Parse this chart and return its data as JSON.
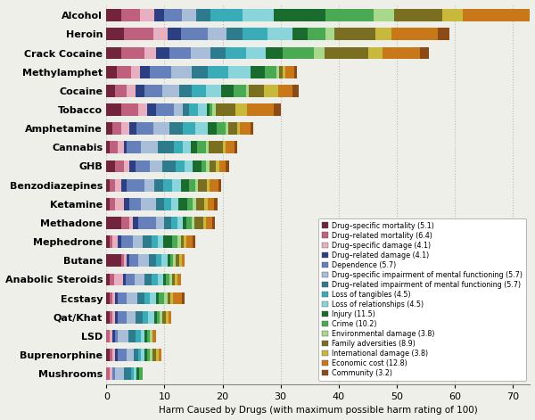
{
  "drugs": [
    "Alcohol",
    "Heroin",
    "Crack Cocaine",
    "Methylamphet",
    "Cocaine",
    "Tobacco",
    "Amphetamine",
    "Cannabis",
    "GHB",
    "Benzodiazepines",
    "Ketamine",
    "Methadone",
    "Mephedrone",
    "Butane",
    "Anabolic Steroids",
    "Ecstasy",
    "Qat/Khat",
    "LSD",
    "Buprenorphine",
    "Mushrooms"
  ],
  "categories": [
    "Drug–specific mortality (5.1)",
    "Drug–related mortality (6.4)",
    "Drug–specific damage (4.1)",
    "Drug–related damage (4.1)",
    "Dependence (5.7)",
    "Drug–specific impairment of mental functioning (5.7)",
    "Drug–related impairment of mental functioning (5.7)",
    "Loss of tangibles (4.5)",
    "Loss of relationships (4.5)",
    "Injury (11.5)",
    "Crime (10.2)",
    "Environmental damage (3.8)",
    "Family adversities (8.9)",
    "International damage (3.8)",
    "Economic cost (12.8)",
    "Community (3.2)"
  ],
  "colors": [
    "#72243d",
    "#c0607f",
    "#e8afc0",
    "#2b3f82",
    "#6680bb",
    "#a8bdd8",
    "#2d7b8c",
    "#3aacb8",
    "#8ad4dc",
    "#1a6b2e",
    "#4aaa54",
    "#a8d88a",
    "#7a6e20",
    "#c8b83c",
    "#c87818",
    "#8c4a14"
  ],
  "bar_data": {
    "Alcohol": [
      2.5,
      3.3,
      2.5,
      1.6,
      3.1,
      2.5,
      2.5,
      5.4,
      5.4,
      9.0,
      8.2,
      3.5,
      8.4,
      3.5,
      11.5,
      3.2
    ],
    "Heroin": [
      3.0,
      5.1,
      2.5,
      2.3,
      4.6,
      3.2,
      2.8,
      4.3,
      4.3,
      2.5,
      3.2,
      1.5,
      7.0,
      2.8,
      8.0,
      2.0
    ],
    "Crack Cocaine": [
      2.5,
      4.0,
      2.0,
      2.3,
      3.7,
      3.5,
      2.5,
      3.5,
      3.5,
      2.8,
      5.5,
      1.8,
      7.5,
      2.5,
      6.5,
      1.5
    ],
    "Methylamphet": [
      1.8,
      2.5,
      1.5,
      1.7,
      3.7,
      3.5,
      2.8,
      3.5,
      3.8,
      2.5,
      2.0,
      0.5,
      0.5,
      0.5,
      1.5,
      0.5
    ],
    "Cocaine": [
      1.5,
      2.0,
      1.5,
      1.5,
      3.2,
      2.8,
      2.2,
      2.5,
      2.5,
      2.2,
      2.2,
      0.5,
      2.5,
      2.5,
      2.5,
      1.0
    ],
    "Tobacco": [
      2.5,
      3.0,
      1.5,
      1.5,
      3.1,
      1.5,
      1.2,
      1.5,
      1.5,
      0.5,
      0.5,
      0.5,
      3.5,
      2.0,
      4.5,
      1.2
    ],
    "Amphetamine": [
      1.0,
      1.5,
      1.5,
      1.2,
      2.9,
      2.8,
      2.2,
      2.2,
      2.2,
      1.5,
      1.5,
      0.5,
      1.5,
      0.5,
      1.8,
      0.5
    ],
    "Cannabis": [
      0.5,
      1.5,
      1.0,
      0.5,
      2.5,
      2.8,
      2.8,
      1.5,
      1.5,
      1.0,
      1.5,
      0.5,
      2.5,
      0.5,
      1.5,
      0.5
    ],
    "GHB": [
      1.5,
      1.5,
      1.0,
      1.0,
      2.5,
      2.2,
      2.2,
      1.5,
      1.5,
      1.5,
      0.8,
      0.5,
      1.2,
      0.5,
      1.2,
      0.5
    ],
    "Benzodiazepines": [
      0.5,
      1.0,
      1.0,
      1.0,
      3.0,
      1.8,
      1.5,
      1.5,
      1.5,
      1.5,
      1.0,
      0.5,
      1.5,
      0.5,
      1.5,
      0.5
    ],
    "Ketamine": [
      0.5,
      1.0,
      1.5,
      1.0,
      2.0,
      2.5,
      1.5,
      1.2,
      1.2,
      1.5,
      1.0,
      0.5,
      1.5,
      0.5,
      1.2,
      0.5
    ],
    "Methadone": [
      2.5,
      1.5,
      0.5,
      1.0,
      3.0,
      1.5,
      1.2,
      1.0,
      1.0,
      0.5,
      1.0,
      0.5,
      1.5,
      0.5,
      1.0,
      0.5
    ],
    "Mephedrone": [
      0.5,
      0.5,
      1.0,
      0.5,
      2.0,
      1.8,
      1.5,
      1.0,
      1.0,
      1.5,
      1.0,
      0.5,
      0.5,
      0.5,
      1.0,
      0.5
    ],
    "Butane": [
      2.5,
      0.5,
      0.5,
      0.5,
      1.5,
      1.8,
      1.2,
      1.0,
      1.0,
      0.5,
      0.5,
      0.5,
      0.5,
      0.5,
      0.5,
      0.0
    ],
    "Anabolic Steroids": [
      0.5,
      0.8,
      1.5,
      0.5,
      1.5,
      1.8,
      1.2,
      1.0,
      1.0,
      0.5,
      0.5,
      0.5,
      0.5,
      0.5,
      0.5,
      0.0
    ],
    "Ecstasy": [
      0.5,
      0.5,
      0.5,
      0.5,
      1.5,
      1.8,
      1.2,
      1.0,
      1.0,
      0.5,
      1.0,
      0.5,
      0.5,
      0.5,
      1.5,
      0.5
    ],
    "Qat/Khat": [
      0.5,
      0.5,
      0.5,
      0.5,
      1.5,
      1.5,
      1.2,
      1.0,
      1.0,
      0.5,
      0.5,
      0.5,
      0.5,
      0.5,
      0.5,
      0.0
    ],
    "LSD": [
      0.0,
      0.5,
      0.5,
      0.5,
      0.5,
      1.8,
      1.2,
      1.0,
      0.5,
      0.5,
      0.5,
      0.5,
      0.0,
      0.0,
      0.5,
      0.0
    ],
    "Buprenorphine": [
      0.5,
      0.5,
      0.5,
      0.5,
      1.5,
      1.2,
      0.8,
      0.5,
      0.5,
      0.5,
      0.5,
      0.5,
      0.5,
      0.5,
      0.5,
      0.0
    ],
    "Mushrooms": [
      0.0,
      0.5,
      0.5,
      0.0,
      0.5,
      1.5,
      1.2,
      0.5,
      0.5,
      0.5,
      0.5,
      0.0,
      0.0,
      0.0,
      0.0,
      0.0
    ]
  },
  "xlabel": "Harm Caused by Drugs (with maximum possible harm rating of 100)",
  "xlim": [
    0,
    73
  ],
  "xticks": [
    0,
    10,
    20,
    30,
    40,
    50,
    60,
    70
  ],
  "background_color": "#efefea",
  "grid_color": "#bbbbbb",
  "bar_height": 0.65,
  "legend_fontsize": 5.8,
  "ytick_fontsize": 8.0
}
